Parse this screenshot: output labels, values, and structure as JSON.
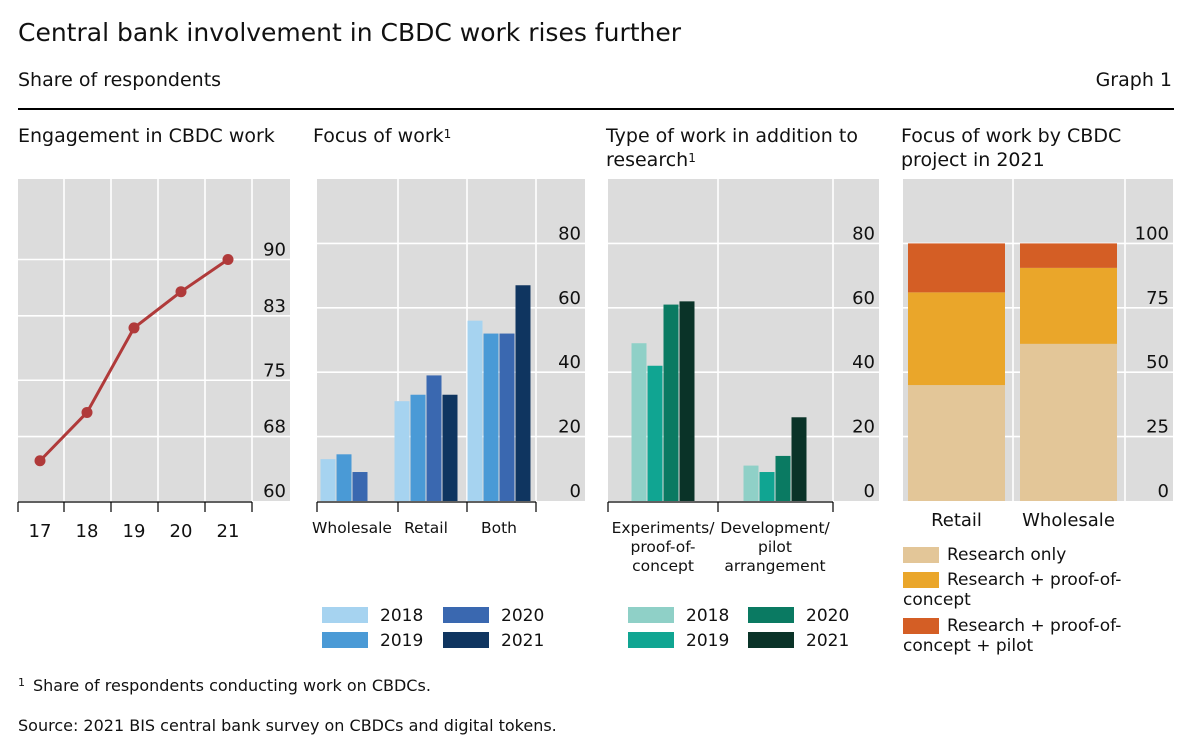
{
  "header": {
    "title": "Central bank involvement in CBDC work rises further",
    "subtitle": "Share of respondents",
    "graph_label": "Graph 1"
  },
  "panels": [
    {
      "title": "Engagement in CBDC work",
      "footnote_mark": ""
    },
    {
      "title": "Focus of work",
      "footnote_mark": "1"
    },
    {
      "title": "Type of work in addition to research",
      "footnote_mark": "1"
    },
    {
      "title": "Focus of work by CBDC project in 2021",
      "footnote_mark": ""
    }
  ],
  "legend_years": {
    "panel2": [
      {
        "label": "2018",
        "color": "#a6d3f0"
      },
      {
        "label": "2019",
        "color": "#4a9ad6"
      },
      {
        "label": "2020",
        "color": "#3a68b0"
      },
      {
        "label": "2021",
        "color": "#0f3560"
      }
    ],
    "panel3": [
      {
        "label": "2018",
        "color": "#8fd0c7"
      },
      {
        "label": "2019",
        "color": "#10a592"
      },
      {
        "label": "2020",
        "color": "#0a7a62"
      },
      {
        "label": "2021",
        "color": "#0a3328"
      }
    ]
  },
  "legend_panel4": [
    {
      "label": "Research only",
      "color": "#e3c698"
    },
    {
      "label": "Research + proof-of-concept",
      "color": "#eaa62a"
    },
    {
      "label": "Research + proof-of-concept + pilot",
      "color": "#d45e25"
    }
  ],
  "footnote": {
    "mark": "1",
    "text": "Share of respondents conducting work on CBDCs."
  },
  "source": "Source: 2021 BIS central bank survey on CBDCs and digital tokens.",
  "chart_data": [
    {
      "type": "line",
      "x": [
        "17",
        "18",
        "19",
        "20",
        "21"
      ],
      "series": [
        {
          "name": "",
          "values": [
            65,
            71,
            81.5,
            86,
            90
          ],
          "color": "#b03a3a"
        }
      ],
      "yticks": [
        "60",
        "68",
        "75",
        "83",
        "90"
      ],
      "ylim": [
        60,
        100
      ],
      "grid": true
    },
    {
      "type": "bar",
      "categories": [
        "Wholesale",
        "Retail",
        "Both"
      ],
      "series": [
        {
          "name": "2018",
          "values": [
            13,
            31,
            56
          ]
        },
        {
          "name": "2019",
          "values": [
            14.5,
            33,
            52
          ]
        },
        {
          "name": "2020",
          "values": [
            9,
            39,
            52
          ]
        },
        {
          "name": "2021",
          "values": [
            0,
            33,
            67
          ]
        }
      ],
      "yticks": [
        "0",
        "20",
        "40",
        "60",
        "80"
      ],
      "ylim": [
        0,
        100
      ],
      "grid": true
    },
    {
      "type": "bar",
      "categories": [
        "Experiments/ proof-of- concept",
        "Development/ pilot arrangement"
      ],
      "series": [
        {
          "name": "2018",
          "values": [
            49,
            11
          ]
        },
        {
          "name": "2019",
          "values": [
            42,
            9
          ]
        },
        {
          "name": "2020",
          "values": [
            61,
            14
          ]
        },
        {
          "name": "2021",
          "values": [
            62,
            26
          ]
        }
      ],
      "yticks": [
        "0",
        "20",
        "40",
        "60",
        "80"
      ],
      "ylim": [
        0,
        100
      ],
      "grid": true
    },
    {
      "type": "bar",
      "stacked": true,
      "categories": [
        "Retail",
        "Wholesale"
      ],
      "series": [
        {
          "name": "Research only",
          "values": [
            45,
            61
          ]
        },
        {
          "name": "Research + proof-of-concept",
          "values": [
            36,
            29.5
          ]
        },
        {
          "name": "Research + proof-of-concept + pilot",
          "values": [
            19,
            9.5
          ]
        }
      ],
      "yticks": [
        "0",
        "25",
        "50",
        "75",
        "100"
      ],
      "ylim": [
        0,
        125
      ],
      "grid": true
    }
  ]
}
